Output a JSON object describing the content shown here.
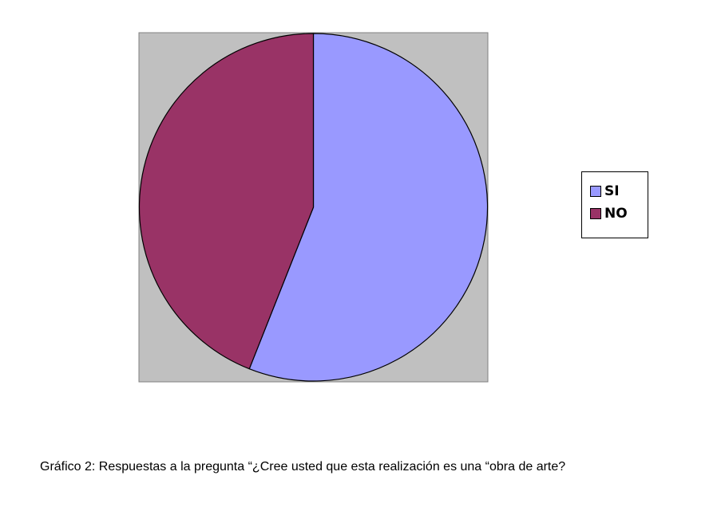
{
  "chart_data": {
    "type": "pie",
    "categories": [
      "SI",
      "NO"
    ],
    "values": [
      56,
      44
    ],
    "colors": [
      "#9999ff",
      "#993366"
    ],
    "plot_area_color": "#c0c0c0",
    "legend_position": "right"
  },
  "caption": "Gráfico 2: Respuestas a la pregunta “¿Cree usted que esta realización es una “obra de arte?"
}
